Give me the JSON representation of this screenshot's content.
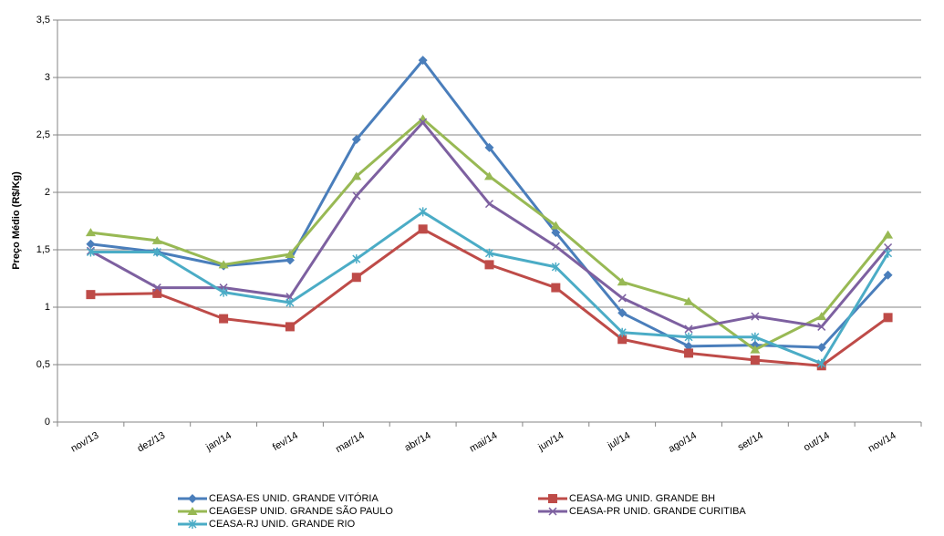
{
  "chart_data": {
    "type": "line",
    "ylabel": "Preço Médio (R$/Kg)",
    "categories": [
      "nov/13",
      "dez/13",
      "jan/14",
      "fev/14",
      "mar/14",
      "abr/14",
      "mai/14",
      "jun/14",
      "jul/14",
      "ago/14",
      "set/14",
      "out/14",
      "nov/14"
    ],
    "ylim": [
      0,
      3.5
    ],
    "yticks": [
      0,
      {
        "value": 0.5,
        "label": "0,5"
      },
      1,
      {
        "value": 1.5,
        "label": "1,5"
      },
      2,
      {
        "value": 2.5,
        "label": "2,5"
      },
      3,
      {
        "value": 3.5,
        "label": "3,5"
      }
    ],
    "grid": true,
    "legend": "bottom",
    "series": [
      {
        "name": "CEASA-ES UNID. GRANDE VITÓRIA",
        "color": "#4a7ebb",
        "marker": "diamond",
        "values": [
          1.55,
          1.48,
          1.36,
          1.41,
          2.46,
          3.15,
          2.39,
          1.65,
          0.95,
          0.66,
          0.67,
          0.65,
          1.28
        ]
      },
      {
        "name": "CEASA-MG UNID. GRANDE BH",
        "color": "#be4b48",
        "marker": "square",
        "values": [
          1.11,
          1.12,
          0.9,
          0.83,
          1.26,
          1.68,
          1.37,
          1.17,
          0.72,
          0.6,
          0.54,
          0.49,
          0.91
        ]
      },
      {
        "name": "CEAGESP UNID. GRANDE SÃO PAULO",
        "color": "#98b954",
        "marker": "triangle",
        "values": [
          1.65,
          1.58,
          1.37,
          1.46,
          2.14,
          2.64,
          2.14,
          1.71,
          1.22,
          1.05,
          0.63,
          0.92,
          1.63
        ]
      },
      {
        "name": "CEASA-PR UNID. GRANDE CURITIBA",
        "color": "#7d60a0",
        "marker": "x",
        "values": [
          1.49,
          1.17,
          1.17,
          1.09,
          1.97,
          2.61,
          1.9,
          1.53,
          1.08,
          0.81,
          0.92,
          0.83,
          1.52
        ]
      },
      {
        "name": "CEASA-RJ UNID. GRANDE RIO",
        "color": "#4bacc6",
        "marker": "star",
        "values": [
          1.48,
          1.48,
          1.13,
          1.04,
          1.42,
          1.83,
          1.47,
          1.35,
          0.78,
          0.74,
          0.74,
          0.51,
          1.47
        ]
      }
    ]
  }
}
